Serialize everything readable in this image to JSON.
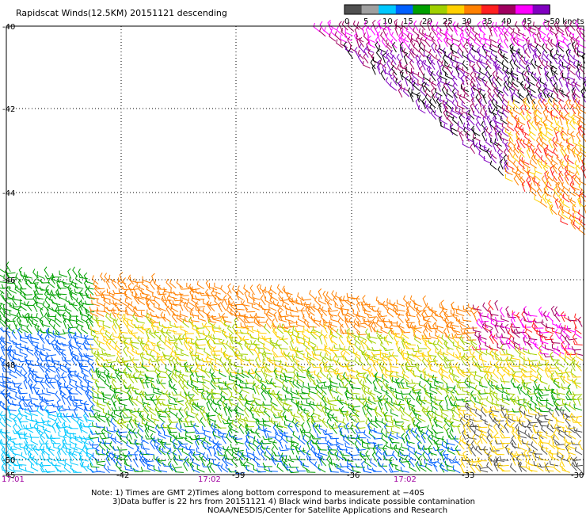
{
  "title": "Rapidscat Winds(12.5KM) 20151121 descending",
  "legend": {
    "labels": [
      "0",
      "5",
      "10",
      "15",
      "20",
      "25",
      "30",
      "35",
      "40",
      "45",
      ">50 knots"
    ],
    "colors": [
      "#505050",
      "#a0a0a0",
      "#00c8ff",
      "#0060ff",
      "#00a000",
      "#a0d000",
      "#ffd000",
      "#ff8000",
      "#ff2020",
      "#a00060",
      "#ff00ff",
      "#8000c0"
    ]
  },
  "axes": {
    "lat_labels": [
      "-40",
      "-42",
      "-44",
      "-46",
      "-48",
      "-50"
    ],
    "lon_labels": [
      "-45",
      "-42",
      "-39",
      "-36",
      "-33",
      "-30"
    ],
    "time_labels": [
      "17:01",
      "17:02",
      "17:02"
    ]
  },
  "notes": [
    "Note: 1) Times are GMT 2)Times along bottom correspond to measurement at −40S",
    "3)Data buffer is 22 hrs from 20151121 4) Black wind barbs indicate possible contamination",
    "NOAA/NESDIS/Center for Satellite Applications and Research"
  ]
}
